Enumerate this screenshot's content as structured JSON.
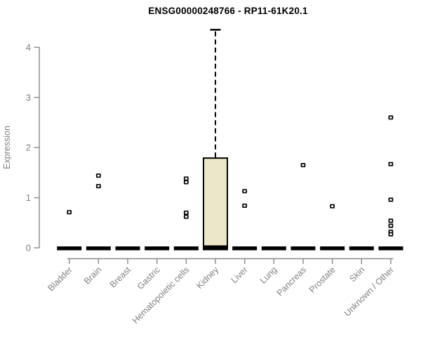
{
  "chart_data": {
    "type": "boxplot",
    "title": "ENSG00000248766 - RP11-61K20.1",
    "ylabel": "Expression",
    "xlabel": "",
    "ylim": [
      0,
      4.4
    ],
    "yticks": [
      0,
      1,
      2,
      3,
      4
    ],
    "grid": false,
    "legend": false,
    "colors": {
      "box_fill": "#ece7c9",
      "box_stroke": "#000000",
      "axis": "#888888",
      "tick_label": "#808080",
      "title": "#000000",
      "background": "#ffffff"
    },
    "categories": [
      "Bladder",
      "Brain",
      "Breast",
      "Gastric",
      "Hematopoietic cells",
      "Kidney",
      "Liver",
      "Lung",
      "Pancreas",
      "Prostate",
      "Skin",
      "Unknown / Other"
    ],
    "boxes": [
      {
        "category": "Bladder",
        "whisker_low": 0,
        "q1": 0,
        "median": 0,
        "q3": 0,
        "whisker_high": 0,
        "outliers": [
          0.71
        ]
      },
      {
        "category": "Brain",
        "whisker_low": 0,
        "q1": 0,
        "median": 0,
        "q3": 0,
        "whisker_high": 0,
        "outliers": [
          1.44,
          1.23
        ]
      },
      {
        "category": "Breast",
        "whisker_low": 0,
        "q1": 0,
        "median": 0,
        "q3": 0,
        "whisker_high": 0,
        "outliers": []
      },
      {
        "category": "Gastric",
        "whisker_low": 0,
        "q1": 0,
        "median": 0,
        "q3": 0,
        "whisker_high": 0,
        "outliers": []
      },
      {
        "category": "Hematopoietic cells",
        "whisker_low": 0,
        "q1": 0,
        "median": 0,
        "q3": 0,
        "whisker_high": 0,
        "outliers": [
          1.38,
          1.31,
          0.7,
          0.62
        ]
      },
      {
        "category": "Kidney",
        "whisker_low": 0,
        "q1": 0,
        "median": 0,
        "q3": 1.79,
        "whisker_high": 4.35,
        "outliers": []
      },
      {
        "category": "Liver",
        "whisker_low": 0,
        "q1": 0,
        "median": 0,
        "q3": 0,
        "whisker_high": 0,
        "outliers": [
          1.13,
          0.84
        ]
      },
      {
        "category": "Lung",
        "whisker_low": 0,
        "q1": 0,
        "median": 0,
        "q3": 0,
        "whisker_high": 0,
        "outliers": []
      },
      {
        "category": "Pancreas",
        "whisker_low": 0,
        "q1": 0,
        "median": 0,
        "q3": 0,
        "whisker_high": 0,
        "outliers": [
          1.65
        ]
      },
      {
        "category": "Prostate",
        "whisker_low": 0,
        "q1": 0,
        "median": 0,
        "q3": 0,
        "whisker_high": 0,
        "outliers": [
          0.83
        ]
      },
      {
        "category": "Skin",
        "whisker_low": 0,
        "q1": 0,
        "median": 0,
        "q3": 0,
        "whisker_high": 0,
        "outliers": []
      },
      {
        "category": "Unknown / Other",
        "whisker_low": 0,
        "q1": 0,
        "median": 0,
        "q3": 0,
        "whisker_high": 0,
        "outliers": [
          2.6,
          1.67,
          0.96,
          0.54,
          0.44,
          0.32,
          0.27
        ]
      }
    ]
  }
}
